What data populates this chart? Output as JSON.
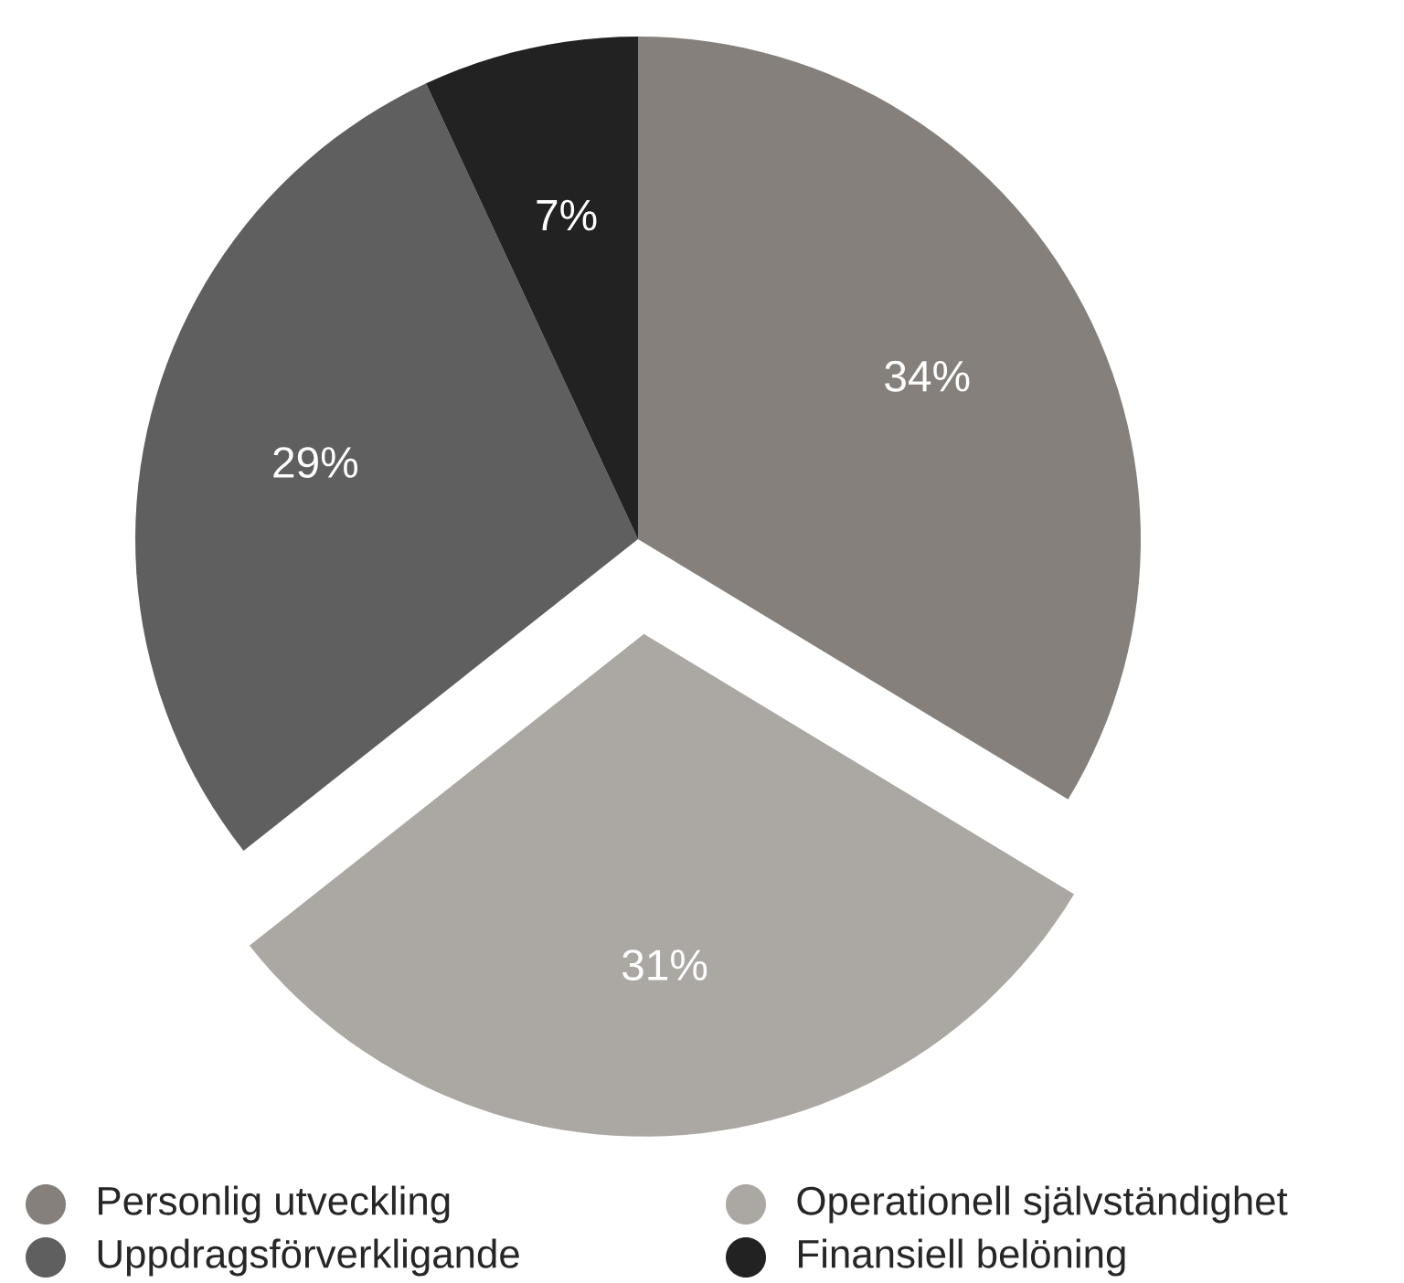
{
  "chart_data": {
    "type": "pie",
    "categories": [
      "Personlig utveckling",
      "Operationell självständighet",
      "Uppdragsförverkligande",
      "Finansiell belöning"
    ],
    "values": [
      34,
      31,
      29,
      7
    ],
    "colors": [
      "#85807b",
      "#aba7a3",
      "#5f5f5f",
      "#222222"
    ],
    "value_labels": [
      "34%",
      "31%",
      "29%",
      "7%"
    ],
    "legend": "bottom"
  }
}
